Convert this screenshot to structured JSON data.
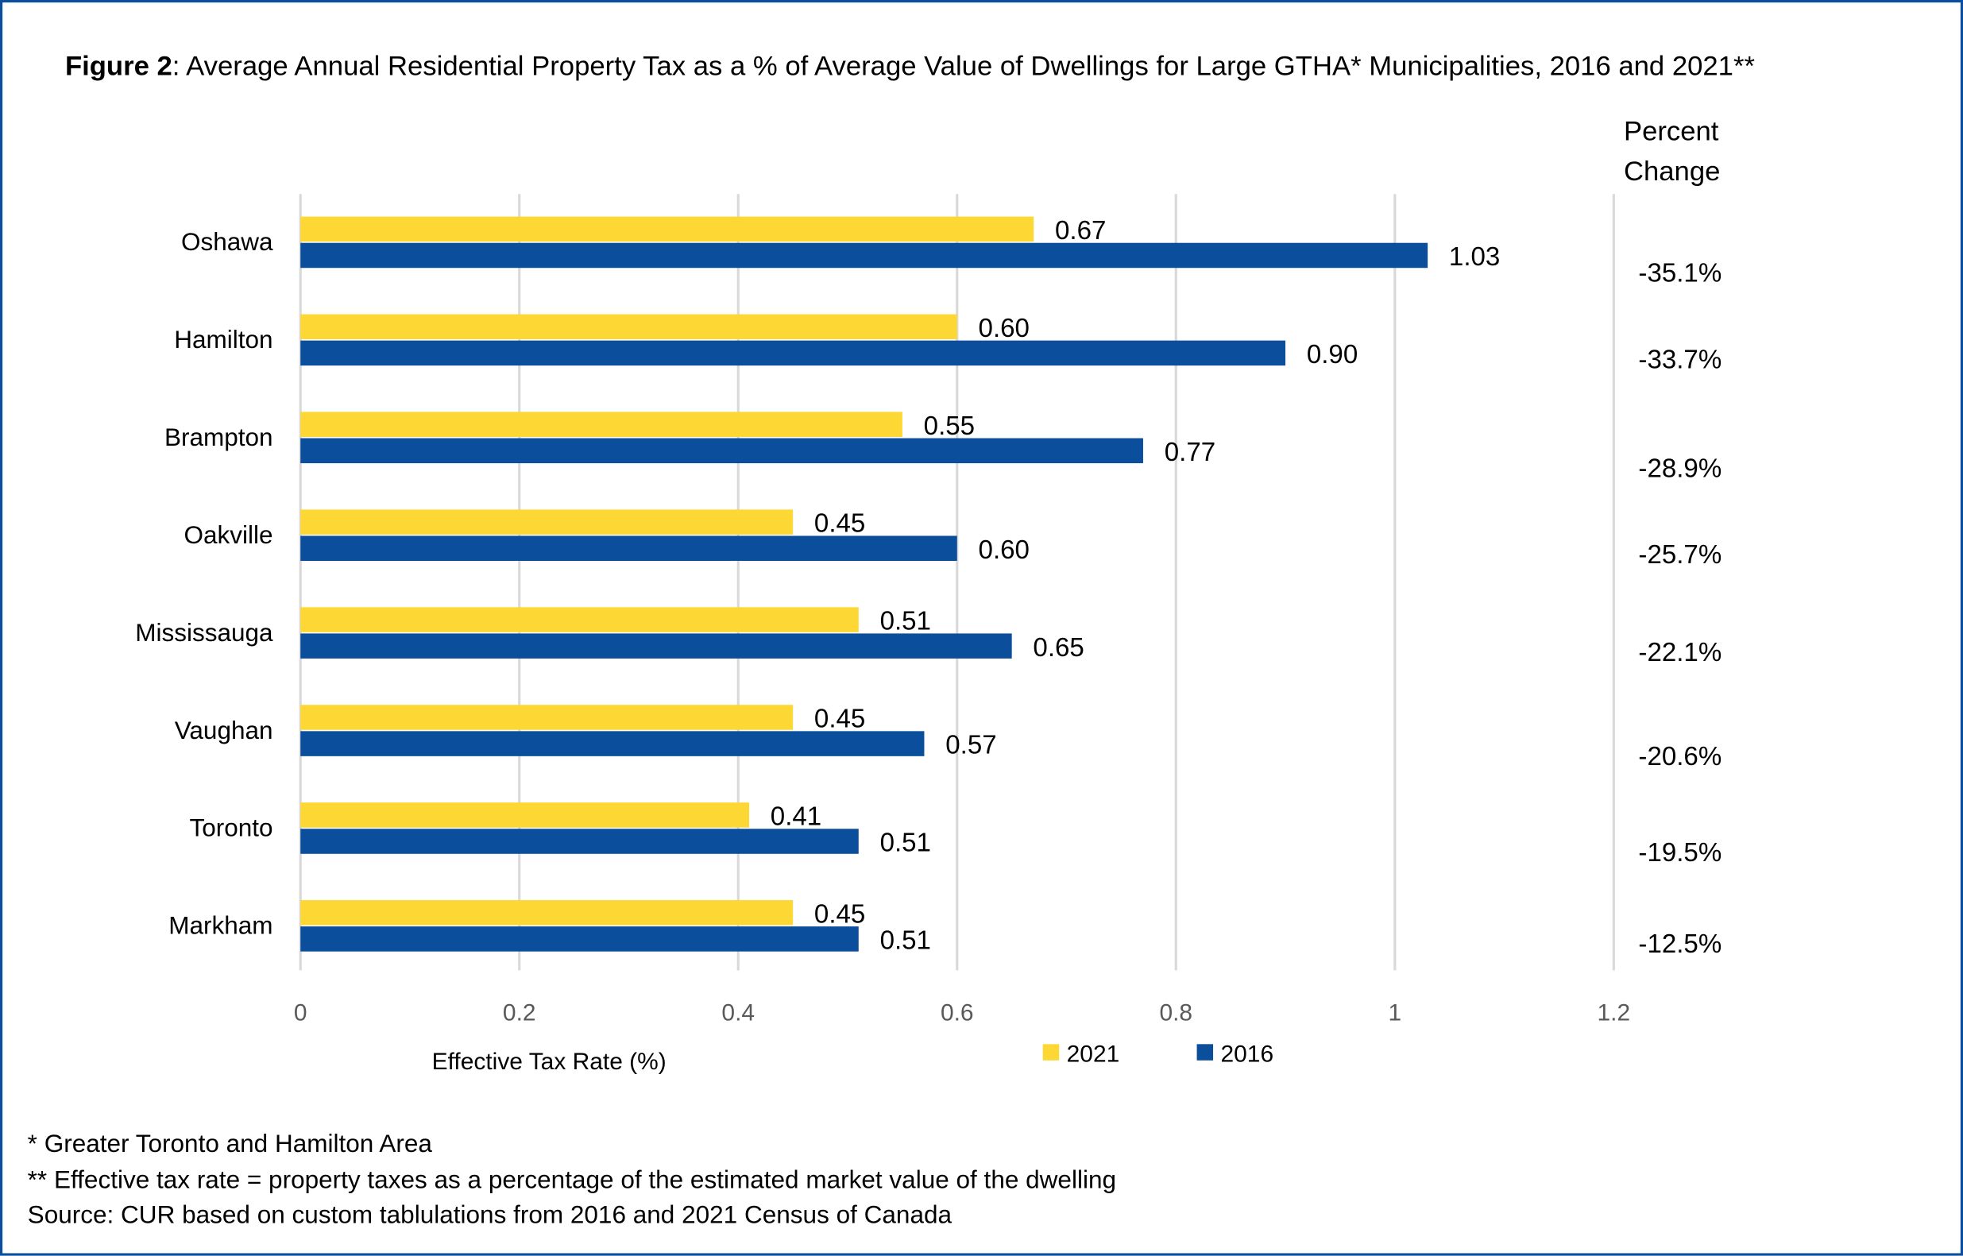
{
  "title": {
    "label": "Figure 2",
    "text": ": Average Annual Residential Property Tax as a % of Average Value of Dwellings for Large GTHA* Municipalities, 2016 and 2021**"
  },
  "percent_change_header": [
    "Percent",
    "Change"
  ],
  "colors": {
    "series_2021": "#FDD835",
    "series_2016": "#0B4F9C",
    "grid": "#d9d9d9",
    "frame": "#0B4F9C"
  },
  "chart_data": {
    "type": "bar",
    "orientation": "horizontal",
    "categories": [
      "Oshawa",
      "Hamilton",
      "Brampton",
      "Oakville",
      "Mississauga",
      "Vaughan",
      "Toronto",
      "Markham"
    ],
    "series": [
      {
        "name": "2021",
        "values": [
          0.67,
          0.6,
          0.55,
          0.45,
          0.51,
          0.45,
          0.41,
          0.45
        ]
      },
      {
        "name": "2016",
        "values": [
          1.03,
          0.9,
          0.77,
          0.6,
          0.65,
          0.57,
          0.51,
          0.51
        ]
      }
    ],
    "data_labels_2021": [
      "0.67",
      "0.60",
      "0.55",
      "0.45",
      "0.51",
      "0.45",
      "0.41",
      "0.45"
    ],
    "data_labels_2016": [
      "1.03",
      "0.90",
      "0.77",
      "0.60",
      "0.65",
      "0.57",
      "0.51",
      "0.51"
    ],
    "percent_change": [
      "-35.1%",
      "-33.7%",
      "-28.9%",
      "-25.7%",
      "-22.1%",
      "-20.6%",
      "-19.5%",
      "-12.5%"
    ],
    "xlabel": "Effective Tax Rate (%)",
    "xlim": [
      0,
      1.2
    ],
    "xticks": [
      "0",
      "0.2",
      "0.4",
      "0.6",
      "0.8",
      "1",
      "1.2"
    ],
    "grid": true,
    "legend_placement": "bottom"
  },
  "footnotes": [
    "* Greater Toronto and Hamilton Area",
    "** Effective tax rate = property taxes as a percentage of the estimated market value of the dwelling",
    "Source: CUR based on custom tablulations  from 2016 and 2021 Census of Canada"
  ]
}
